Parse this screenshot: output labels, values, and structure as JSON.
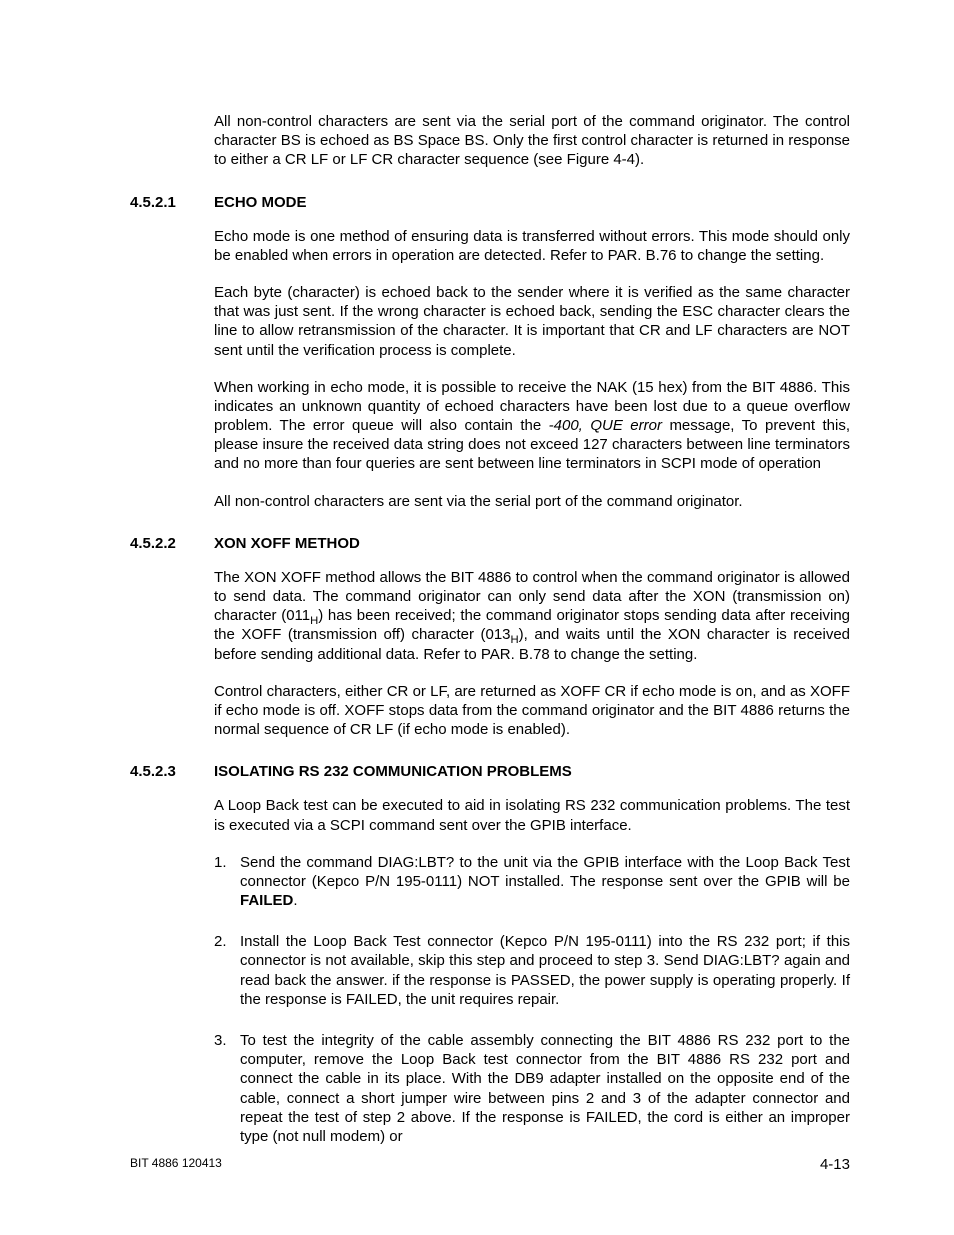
{
  "intro_para": "All non-control characters are sent via the serial port of the command originator. The control character BS is echoed as BS Space BS. Only the first control character is returned in response to either a CR LF or LF CR character sequence (see Figure 4-4).",
  "s1": {
    "num": "4.5.2.1",
    "title": "ECHO MODE",
    "p1": "Echo mode is one method of ensuring data is transferred without errors. This mode should only be enabled when errors in operation are detected. Refer to PAR. B.76 to change the setting.",
    "p2": "Each byte (character) is echoed back to the sender where it is verified as the same character that was just sent. If the wrong character is echoed back, sending the ESC character clears the line to allow retransmission of the character. It is important that CR and LF characters are NOT sent until the verification process is complete.",
    "p3a": "When working in echo mode, it is possible to receive the NAK (15 hex) from the BIT 4886. This indicates an unknown quantity of echoed characters have been lost due to a queue overflow problem. The error queue will also contain the ",
    "p3_err": "-400, QUE error",
    "p3b": " message, To prevent this, please insure the received data string does not exceed 127 characters between line terminators and no more than four queries are sent between line terminators in SCPI mode of operation",
    "p4": "All non-control characters are sent via the serial port of the command originator."
  },
  "s2": {
    "num": "4.5.2.2",
    "title": "XON XOFF METHOD",
    "p1a": "The XON XOFF method allows the BIT 4886 to control when the command originator is allowed to send data. The command originator can only send data after the XON (transmission on) character (011",
    "p1b": ") has been received; the command originator stops sending data after receiving the XOFF (transmission off) character (013",
    "p1c": "), and waits until the XON character is received before sending additional data. Refer to PAR. B.78 to change the setting.",
    "sub": "H",
    "p2": "Control characters, either CR or LF, are returned as XOFF CR if echo mode is on, and as XOFF if echo mode is off. XOFF stops data from the command originator and the BIT 4886 returns the normal sequence of CR LF (if echo mode is enabled)."
  },
  "s3": {
    "num": "4.5.2.3",
    "title": "ISOLATING RS 232 COMMUNICATION PROBLEMS",
    "p1": "A Loop Back test can be executed to aid in isolating RS 232 communication problems. The test is executed via a SCPI command sent over the GPIB interface.",
    "li1a": "Send the command DIAG:LBT? to the unit via the GPIB interface with the Loop Back Test connector (Kepco P/N 195-0111) NOT installed. The response sent over the GPIB will be ",
    "li1_failed": "FAILED",
    "li1b": ".",
    "li2": "Install the Loop Back Test connector (Kepco P/N 195-0111) into the RS 232 port; if this connector is not available, skip this step and proceed to step 3. Send DIAG:LBT? again and read back the answer. if the response is PASSED, the power supply is operating properly. If the response is FAILED, the unit requires repair.",
    "li3": "To test the integrity of the cable assembly connecting the BIT 4886 RS 232 port to the computer, remove the Loop Back test connector from the BIT 4886 RS 232 port and connect the cable in its place. With the DB9 adapter installed on the opposite end of the cable, connect a short jumper wire between pins 2 and 3 of the adapter connector and repeat the test of step 2 above. If the response is FAILED, the cord is either an improper type (not null modem) or"
  },
  "footer": {
    "left": "BIT 4886 120413",
    "right": "4-13"
  }
}
